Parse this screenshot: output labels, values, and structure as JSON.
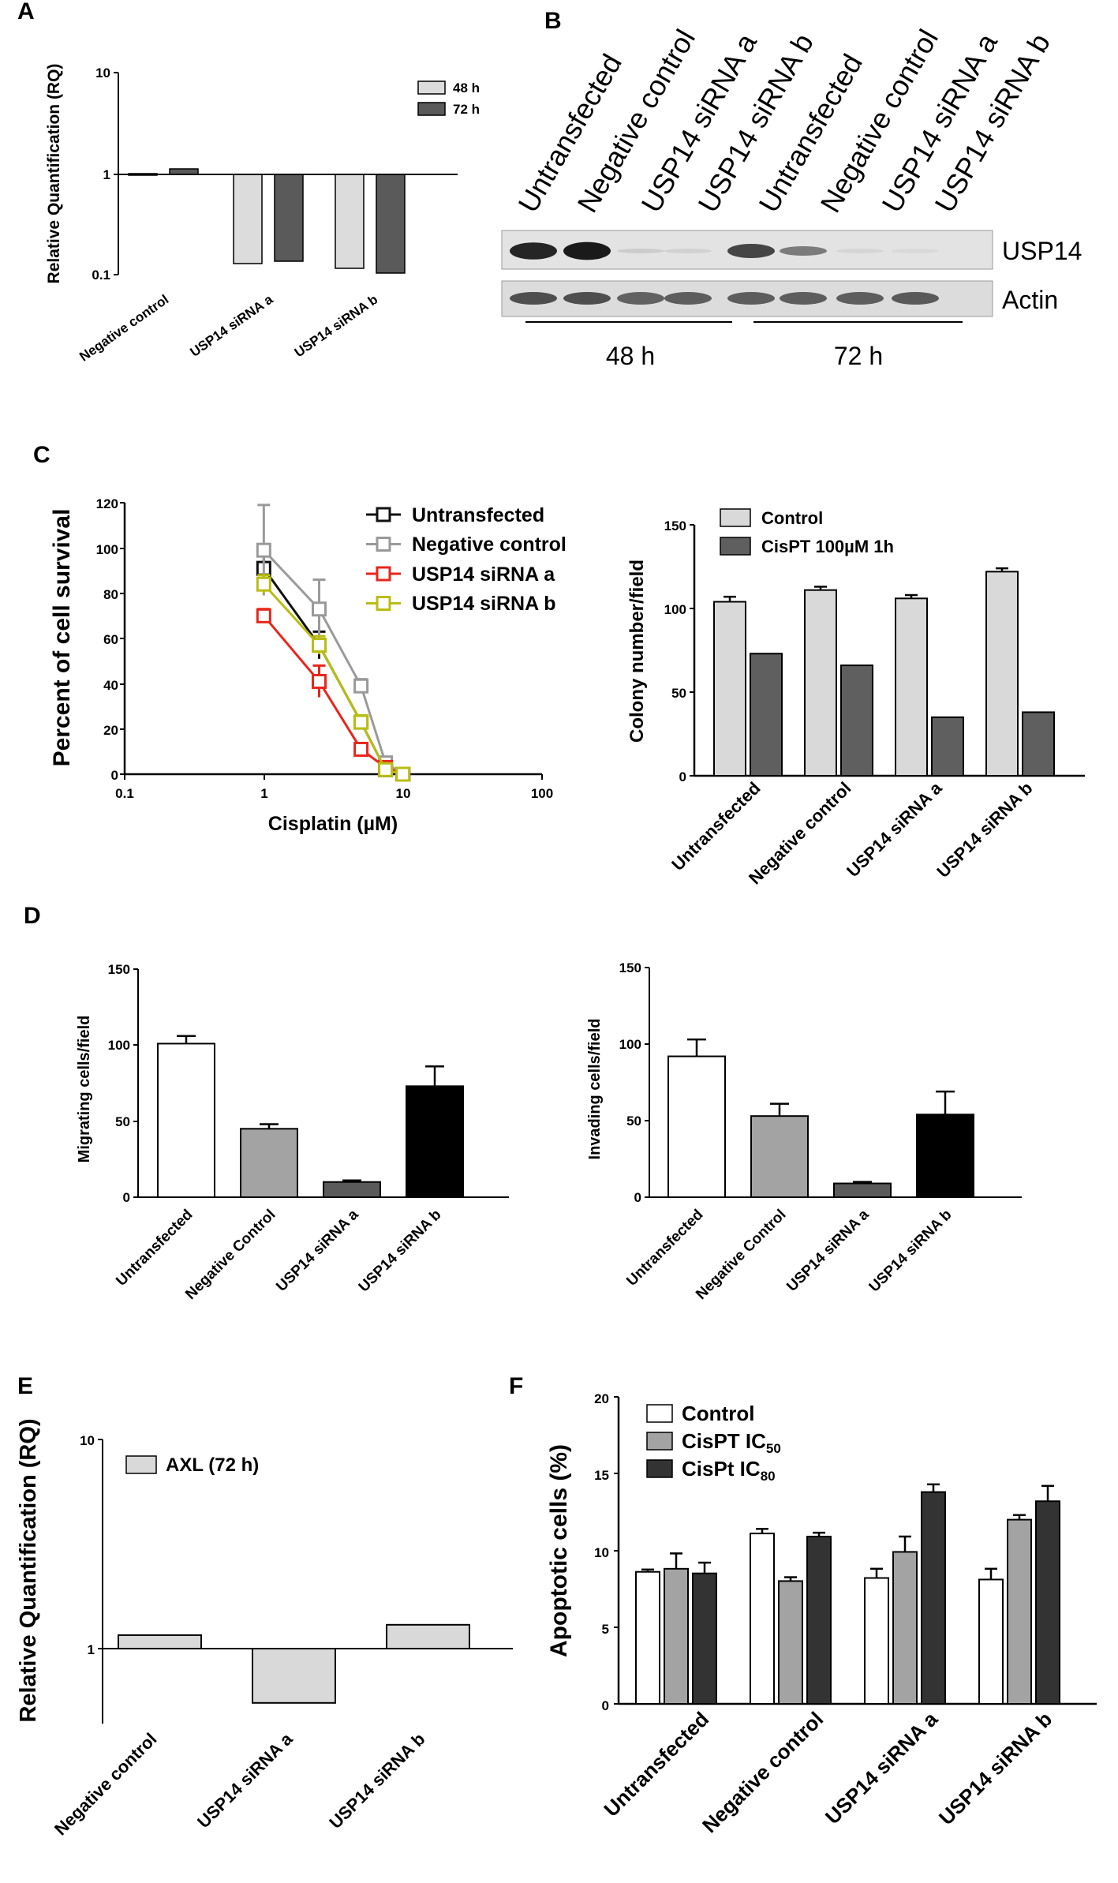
{
  "panels": {
    "A": "A",
    "B": "B",
    "C": "C",
    "D": "D",
    "E": "E",
    "F": "F"
  },
  "western_blot": {
    "lanes": [
      "Untransfected",
      "Negative control",
      "USP14 siRNA a",
      "USP14 siRNA b",
      "Untransfected",
      "Negative control",
      "USP14 siRNA a",
      "USP14 siRNA b"
    ],
    "bands": [
      "USP14",
      "Actin"
    ],
    "groups": [
      "48 h",
      "72 h"
    ],
    "usp14_intensity": [
      0.9,
      0.95,
      0.12,
      0.1,
      0.75,
      0.5,
      0.08,
      0.06
    ],
    "actin_intensity": [
      0.8,
      0.8,
      0.7,
      0.72,
      0.72,
      0.72,
      0.72,
      0.74
    ]
  },
  "chart_data": [
    {
      "id": "A",
      "type": "bar",
      "yscale": "log",
      "ylabel": "Relative Quantification (RQ)",
      "ylim": [
        0.1,
        10
      ],
      "yticks": [
        "10",
        "1",
        "0.1"
      ],
      "baseline": 1,
      "categories": [
        "Negative control",
        "USP14 siRNA a",
        "USP14 siRNA b"
      ],
      "series": [
        {
          "name": "48 h",
          "color": "#dcdcdc",
          "values": [
            1.03,
            0.13,
            0.12
          ]
        },
        {
          "name": "72 h",
          "color": "#5a5a5a",
          "values": [
            1.12,
            0.14,
            0.11
          ]
        }
      ],
      "legend_position": "top-right"
    },
    {
      "id": "C1",
      "type": "line",
      "xscale": "log",
      "xlabel": "Cisplatin (µM)",
      "ylabel": "Percent of cell survival",
      "xlim": [
        0.1,
        100
      ],
      "ylim": [
        0,
        120
      ],
      "xticks": [
        "0.1",
        "1",
        "10",
        "100"
      ],
      "yticks": [
        "0",
        "20",
        "40",
        "60",
        "80",
        "100",
        "120"
      ],
      "x": [
        1,
        2.5,
        5,
        7.5,
        10
      ],
      "series": [
        {
          "name": "Untransfected",
          "color": "#111111",
          "values": [
            91,
            57,
            23,
            2,
            0
          ],
          "errors": [
            6,
            6,
            3,
            1,
            0
          ]
        },
        {
          "name": "Negative control",
          "color": "#9a9a9a",
          "values": [
            99,
            73,
            39,
            5,
            0
          ],
          "errors": [
            20,
            13,
            3,
            2,
            0
          ]
        },
        {
          "name": "USP14 siRNA a",
          "color": "#e8261c",
          "values": [
            70,
            41,
            11,
            3,
            0
          ],
          "errors": [
            3,
            7,
            2,
            1,
            0
          ]
        },
        {
          "name": "USP14 siRNA b",
          "color": "#b9bd12",
          "values": [
            84,
            57,
            23,
            2,
            0
          ],
          "errors": [
            4,
            4,
            3,
            1,
            0
          ]
        }
      ],
      "legend_position": "top-right"
    },
    {
      "id": "C2",
      "type": "bar",
      "ylabel": "Colony number/field",
      "ylim": [
        0,
        150
      ],
      "yticks": [
        "0",
        "50",
        "100",
        "150"
      ],
      "categories": [
        "Untransfected",
        "Negative control",
        "USP14 siRNA a",
        "USP14 siRNA b"
      ],
      "series": [
        {
          "name": "Control",
          "color": "#d9d9d9",
          "values": [
            104,
            111,
            106,
            122
          ],
          "errors": [
            3,
            2,
            2,
            2
          ]
        },
        {
          "name": "CisPT 100µM 1h",
          "color": "#5f5f5f",
          "values": [
            73,
            66,
            35,
            38
          ],
          "errors": [
            0,
            0,
            0,
            0
          ]
        }
      ],
      "legend_position": "top-left"
    },
    {
      "id": "D1",
      "type": "bar",
      "ylabel": "Migrating cells/field",
      "ylim": [
        0,
        150
      ],
      "yticks": [
        "0",
        "50",
        "100",
        "150"
      ],
      "categories": [
        "Untransfected",
        "Negative Control",
        "USP14 siRNA a",
        "USP14 siRNA b"
      ],
      "colors": [
        "#ffffff",
        "#a3a3a3",
        "#5a5a5a",
        "#000000"
      ],
      "values": [
        101,
        45,
        10,
        73
      ],
      "errors": [
        5,
        3,
        1,
        13
      ]
    },
    {
      "id": "D2",
      "type": "bar",
      "ylabel": "Invading cells/field",
      "ylim": [
        0,
        150
      ],
      "yticks": [
        "0",
        "50",
        "100",
        "150"
      ],
      "categories": [
        "Untransfected",
        "Negative Control",
        "USP14 siRNA a",
        "USP14 siRNA b"
      ],
      "colors": [
        "#ffffff",
        "#a3a3a3",
        "#5a5a5a",
        "#000000"
      ],
      "values": [
        92,
        53,
        9,
        54
      ],
      "errors": [
        11,
        8,
        1,
        15
      ]
    },
    {
      "id": "E",
      "type": "bar",
      "yscale": "log",
      "ylabel": "Relative Quantification (RQ)",
      "ylim": [
        0.5,
        10
      ],
      "yticks": [
        "10",
        "1"
      ],
      "baseline": 1,
      "categories": [
        "Negative control",
        "USP14 siRNA a",
        "USP14 siRNA b"
      ],
      "series": [
        {
          "name": "AXL (72 h)",
          "color": "#d9d9d9",
          "values": [
            1.16,
            0.55,
            1.3
          ]
        }
      ],
      "legend_position": "top-left"
    },
    {
      "id": "F",
      "type": "bar",
      "ylabel": "Apoptotic cells  (%)",
      "ylim": [
        0,
        20
      ],
      "yticks": [
        "0",
        "5",
        "10",
        "15",
        "20"
      ],
      "categories": [
        "Untransfected",
        "Negative control",
        "USP14 siRNA a",
        "USP14 siRNA b"
      ],
      "series": [
        {
          "name": "Control",
          "color": "#ffffff",
          "values": [
            8.6,
            11.1,
            8.2,
            8.1
          ],
          "errors": [
            0.15,
            0.3,
            0.6,
            0.7
          ]
        },
        {
          "name": "CisPT IC",
          "sub": "50",
          "color": "#a3a3a3",
          "values": [
            8.8,
            8.0,
            9.9,
            12.0
          ],
          "errors": [
            1.0,
            0.25,
            1.0,
            0.3
          ]
        },
        {
          "name": "CisPt IC",
          "sub": "80",
          "color": "#333333",
          "values": [
            8.5,
            10.9,
            13.8,
            13.2
          ],
          "errors": [
            0.7,
            0.25,
            0.5,
            1.0
          ]
        }
      ],
      "legend_position": "top-left"
    }
  ]
}
